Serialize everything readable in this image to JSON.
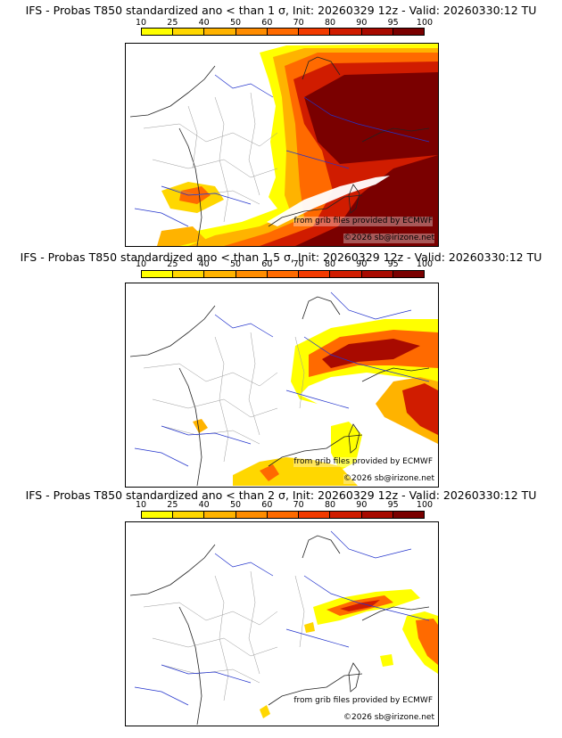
{
  "colorbar": {
    "ticks": [
      "10",
      "25",
      "40",
      "50",
      "60",
      "70",
      "80",
      "90",
      "95",
      "100"
    ],
    "colors": [
      "#ffff00",
      "#ffd700",
      "#ffb300",
      "#ff8c00",
      "#ff6a00",
      "#f23a00",
      "#d01c00",
      "#a80a00",
      "#7a0000"
    ]
  },
  "panels": [
    {
      "title": "IFS - Probas T850  standardized ano < than 1 σ, Init: 20260329 12z - Valid: 20260330:12 TU",
      "credit_source": "from grib files provided by ECMWF",
      "credit_copyright": "©2026 sb@irizone.net"
    },
    {
      "title": "IFS - Probas T850  standardized ano < than 1.5 σ, Init: 20260329 12z - Valid: 20260330:12 TU",
      "credit_source": "from grib files provided by ECMWF",
      "credit_copyright": "©2026 sb@irizone.net"
    },
    {
      "title": "IFS - Probas T850  standardized ano < than 2 σ, Init: 20260329 12z - Valid: 20260330:12 TU",
      "credit_source": "from grib files provided by ECMWF",
      "credit_copyright": "©2026 sb@irizone.net"
    }
  ]
}
